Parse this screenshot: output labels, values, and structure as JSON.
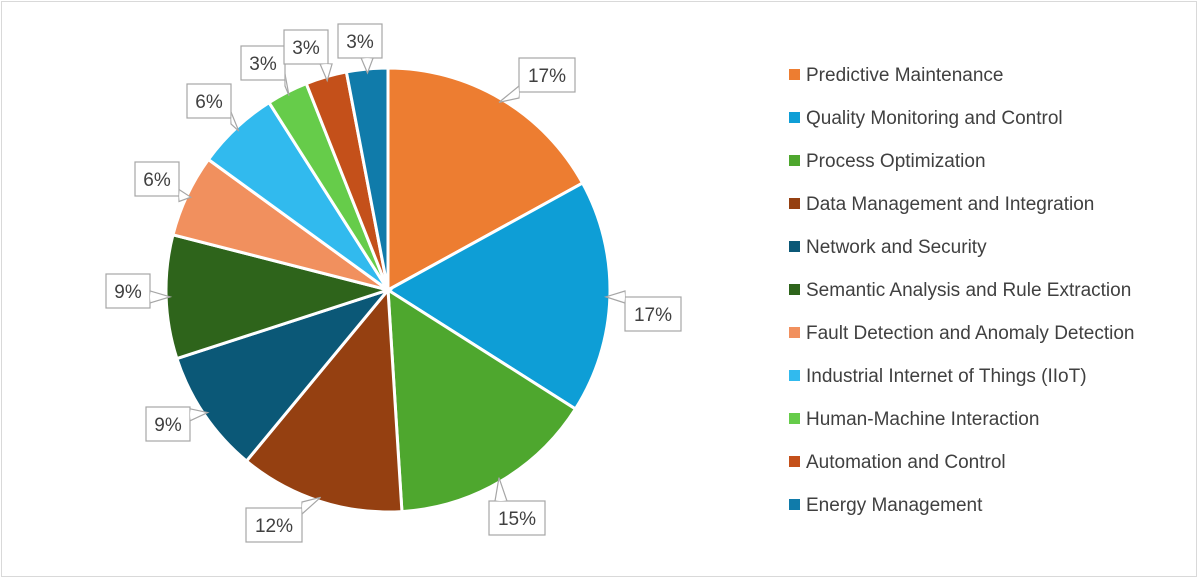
{
  "chart_data": {
    "type": "pie",
    "title": "",
    "legend_position": "right",
    "slices": [
      {
        "label": "Predictive Maintenance",
        "value": 17,
        "display": "17%",
        "color": "#ED7D31"
      },
      {
        "label": "Quality Monitoring and Control",
        "value": 17,
        "display": "17%",
        "color": "#0E9ED6"
      },
      {
        "label": "Process Optimization",
        "value": 15,
        "display": "15%",
        "color": "#4EA72E"
      },
      {
        "label": "Data Management and Integration",
        "value": 12,
        "display": "12%",
        "color": "#954011"
      },
      {
        "label": "Network and Security",
        "value": 9,
        "display": "9%",
        "color": "#0B5877"
      },
      {
        "label": "Semantic Analysis and Rule Extraction",
        "value": 9,
        "display": "9%",
        "color": "#2E641B"
      },
      {
        "label": "Fault Detection and Anomaly Detection",
        "value": 6,
        "display": "6%",
        "color": "#F1905E"
      },
      {
        "label": "Industrial Internet of Things (IIoT)",
        "value": 6,
        "display": "6%",
        "color": "#31BAEE"
      },
      {
        "label": "Human-Machine Interaction",
        "value": 3,
        "display": "3%",
        "color": "#66CC4A"
      },
      {
        "label": "Automation and Control",
        "value": 3,
        "display": "3%",
        "color": "#C4501A"
      },
      {
        "label": "Energy Management",
        "value": 3,
        "display": "3%",
        "color": "#107BAA"
      }
    ]
  }
}
